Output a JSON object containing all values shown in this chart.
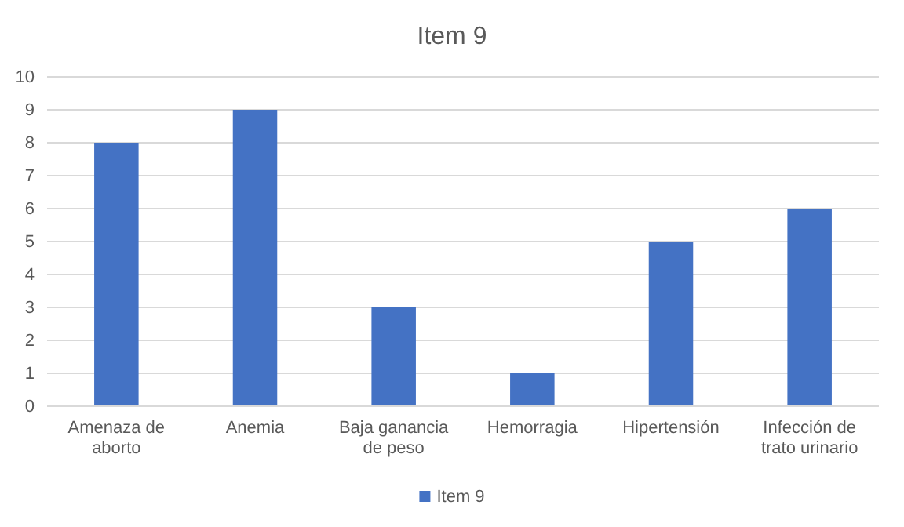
{
  "chart_data": {
    "type": "bar",
    "title": "Item 9",
    "categories": [
      "Amenaza de aborto",
      "Anemia",
      "Baja ganancia de peso",
      "Hemorragia",
      "Hipertensión",
      "Infección de trato urinario"
    ],
    "series": [
      {
        "name": "Item 9",
        "color": "#4472c4",
        "values": [
          8,
          9,
          3,
          1,
          5,
          6
        ]
      }
    ],
    "ylim": [
      0,
      10
    ],
    "yticks": [
      0,
      1,
      2,
      3,
      4,
      5,
      6,
      7,
      8,
      9,
      10
    ],
    "grid": "y",
    "legend": "bottom"
  }
}
